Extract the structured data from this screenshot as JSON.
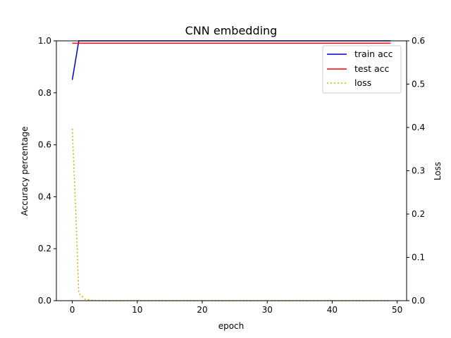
{
  "chart_data": {
    "type": "line",
    "title": "CNN embedding",
    "xlabel": "epoch",
    "ylabel": "Accuracy percentage",
    "y2label": "Loss",
    "xlim": [
      -2.45,
      51.45
    ],
    "ylim": [
      0,
      1.0
    ],
    "y2lim": [
      0,
      0.6
    ],
    "xticks": [
      0,
      10,
      20,
      30,
      40,
      50
    ],
    "yticks": [
      0.0,
      0.2,
      0.4,
      0.6,
      0.8,
      1.0
    ],
    "y2ticks": [
      0.0,
      0.1,
      0.2,
      0.3,
      0.4,
      0.5,
      0.6
    ],
    "grid": false,
    "legend_position": "top-right",
    "series": [
      {
        "name": "train acc",
        "axis": "left",
        "color": "#0000cc",
        "style": "solid",
        "x": [
          0,
          1,
          2,
          3,
          4,
          5,
          6,
          7,
          8,
          9,
          10,
          11,
          12,
          13,
          14,
          15,
          16,
          17,
          18,
          19,
          20,
          21,
          22,
          23,
          24,
          25,
          26,
          27,
          28,
          29,
          30,
          31,
          32,
          33,
          34,
          35,
          36,
          37,
          38,
          39,
          40,
          41,
          42,
          43,
          44,
          45,
          46,
          47,
          48,
          49
        ],
        "values": [
          0.85,
          1.0,
          1.0,
          1.0,
          1.0,
          1.0,
          1.0,
          1.0,
          1.0,
          1.0,
          1.0,
          1.0,
          1.0,
          1.0,
          1.0,
          1.0,
          1.0,
          1.0,
          1.0,
          1.0,
          1.0,
          1.0,
          1.0,
          1.0,
          1.0,
          1.0,
          1.0,
          1.0,
          1.0,
          1.0,
          1.0,
          1.0,
          1.0,
          1.0,
          1.0,
          1.0,
          1.0,
          1.0,
          1.0,
          1.0,
          1.0,
          1.0,
          1.0,
          1.0,
          1.0,
          1.0,
          1.0,
          1.0,
          1.0,
          1.0
        ]
      },
      {
        "name": "test acc",
        "axis": "left",
        "color": "#ff0000",
        "style": "solid",
        "x": [
          0,
          1,
          2,
          3,
          4,
          5,
          6,
          7,
          8,
          9,
          10,
          11,
          12,
          13,
          14,
          15,
          16,
          17,
          18,
          19,
          20,
          21,
          22,
          23,
          24,
          25,
          26,
          27,
          28,
          29,
          30,
          31,
          32,
          33,
          34,
          35,
          36,
          37,
          38,
          39,
          40,
          41,
          42,
          43,
          44,
          45,
          46,
          47,
          48,
          49
        ],
        "values": [
          0.991,
          0.991,
          0.991,
          0.991,
          0.991,
          0.991,
          0.991,
          0.991,
          0.991,
          0.991,
          0.991,
          0.991,
          0.991,
          0.991,
          0.991,
          0.991,
          0.991,
          0.991,
          0.991,
          0.991,
          0.991,
          0.991,
          0.991,
          0.991,
          0.991,
          0.991,
          0.991,
          0.991,
          0.991,
          0.991,
          0.991,
          0.991,
          0.991,
          0.991,
          0.991,
          0.991,
          0.991,
          0.991,
          0.991,
          0.991,
          0.991,
          0.991,
          0.991,
          0.991,
          0.991,
          0.991,
          0.991,
          0.991,
          0.991,
          0.991
        ]
      },
      {
        "name": "loss",
        "axis": "right",
        "color": "#ccb200",
        "style": "dotted",
        "x": [
          0,
          0.5,
          1,
          2,
          3,
          4,
          5,
          6,
          7,
          8,
          9,
          10,
          11,
          12,
          13,
          14,
          15,
          16,
          17,
          18,
          19,
          20,
          21,
          22,
          23,
          24,
          25,
          26,
          27,
          28,
          29,
          30,
          31,
          32,
          33,
          34,
          35,
          36,
          37,
          38,
          39,
          40,
          41,
          42,
          43,
          44,
          45,
          46,
          47,
          48,
          49
        ],
        "values": [
          0.397,
          0.22,
          0.017,
          0.003,
          0.001,
          0.0,
          0.0,
          0.0,
          0.0,
          0.0,
          0.0,
          0.0,
          0.0,
          0.0,
          0.0,
          0.0,
          0.0,
          0.0,
          0.0,
          0.0,
          0.0,
          0.0,
          0.0,
          0.0,
          0.0,
          0.0,
          0.0,
          0.0,
          0.0,
          0.0,
          0.0,
          0.0,
          0.0,
          0.0,
          0.0,
          0.0,
          0.0,
          0.0,
          0.0,
          0.0,
          0.0,
          0.0,
          0.0,
          0.0,
          0.0,
          0.0,
          0.0,
          0.0,
          0.0,
          0.0,
          0.0
        ]
      }
    ]
  }
}
